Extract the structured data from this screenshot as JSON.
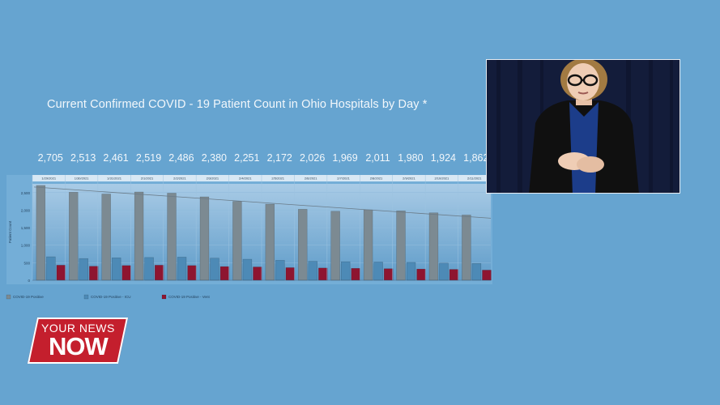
{
  "chart_data": {
    "type": "bar",
    "title": "Current Confirmed COVID - 19 Patient Count in Ohio Hospitals by Day *",
    "ylabel": "Patient Count",
    "ylim": [
      0,
      2750
    ],
    "yticks": [
      "0",
      "500",
      "1,000",
      "1,500",
      "2,000",
      "2,500"
    ],
    "grid": true,
    "trendline": true,
    "legend_position": "bottom-left",
    "categories": [
      "1/29/2021",
      "1/30/2021",
      "1/31/2021",
      "2/1/2021",
      "2/2/2021",
      "2/3/2021",
      "2/4/2021",
      "2/5/2021",
      "2/6/2021",
      "2/7/2021",
      "2/8/2021",
      "2/9/2021",
      "2/10/2021",
      "2/11/2021"
    ],
    "top_labels": [
      "2,705",
      "2,513",
      "2,461",
      "2,519",
      "2,486",
      "2,380",
      "2,251",
      "2,172",
      "2,026",
      "1,969",
      "2,011",
      "1,980",
      "1,924",
      "1,862"
    ],
    "series": [
      {
        "name": "COVID-19 Positive",
        "color": "#7c8a92",
        "values": [
          2705,
          2513,
          2461,
          2519,
          2486,
          2380,
          2251,
          2172,
          2026,
          1969,
          2011,
          1980,
          1924,
          1862
        ]
      },
      {
        "name": "COVID-19 Positive - ICU",
        "color": "#4d8ab6",
        "values": [
          670,
          620,
          640,
          650,
          660,
          630,
          600,
          570,
          540,
          530,
          520,
          510,
          490,
          480
        ]
      },
      {
        "name": "COVID-19 Positive - Vent",
        "color": "#8e1530",
        "values": [
          430,
          400,
          420,
          430,
          420,
          390,
          380,
          360,
          350,
          340,
          330,
          320,
          310,
          290
        ]
      }
    ]
  },
  "logo": {
    "top": "YOUR NEWS",
    "bottom": "NOW"
  },
  "colors": {
    "background": "#66a4d0",
    "logo_red": "#c41f2d",
    "text": "#f2f7fb"
  },
  "interpreter_video": {
    "description_icon": "sign-language-interpreter"
  }
}
